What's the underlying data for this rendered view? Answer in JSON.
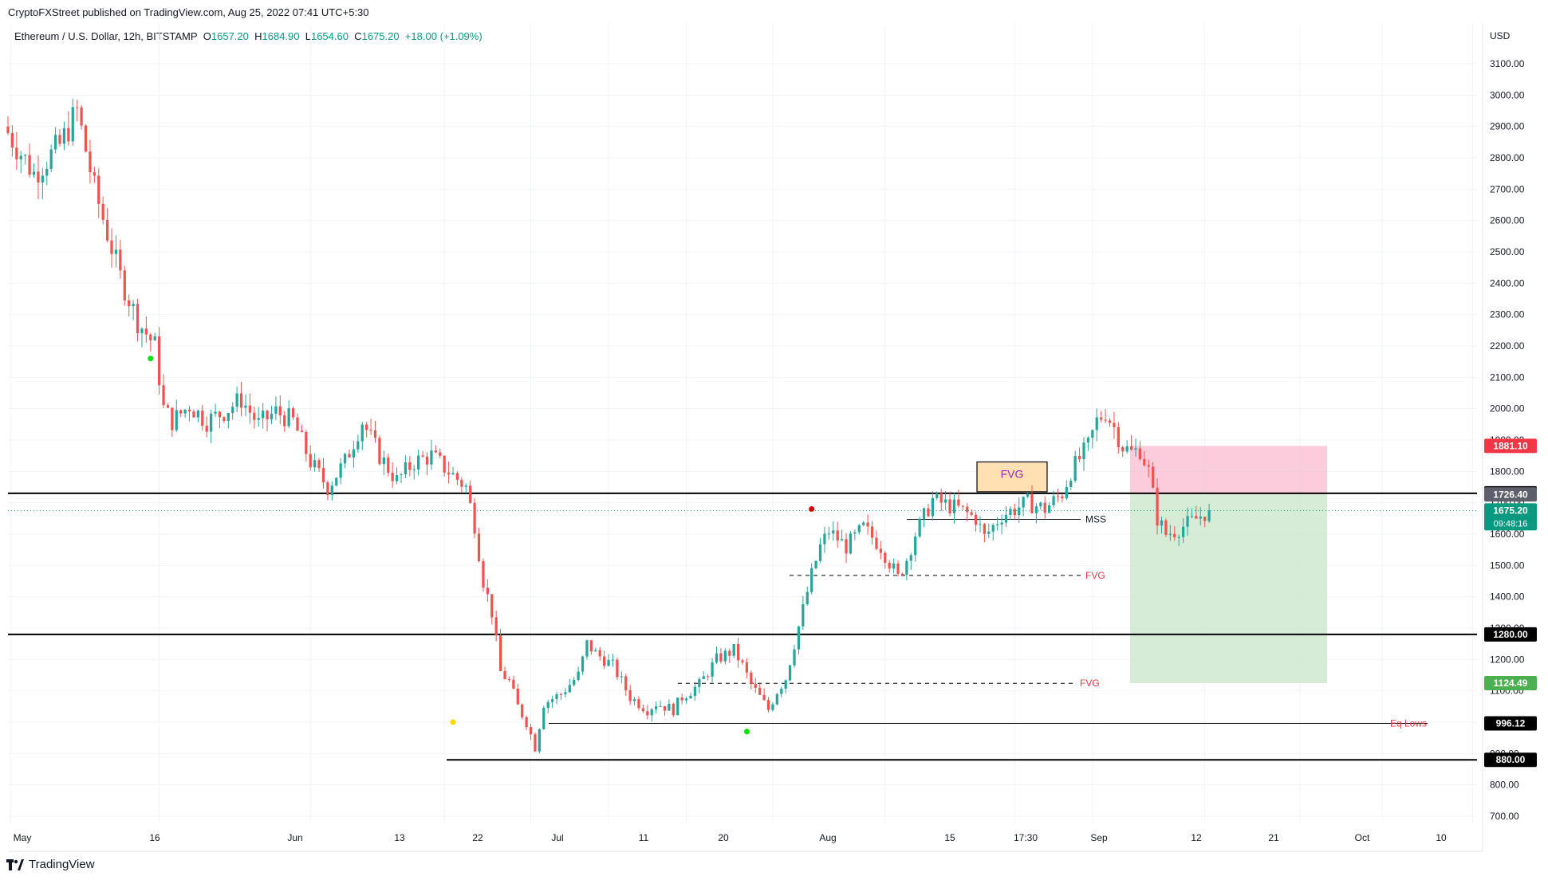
{
  "header": {
    "publisher_line": "CryptoFXStreet published on TradingView.com, Aug 25, 2022 07:41 UTC+5:30"
  },
  "symbol_bar": {
    "symbol": "Ethereum / U.S. Dollar, 12h, BITSTAMP",
    "o_label": "O",
    "o": "1657.20",
    "h_label": "H",
    "h": "1684.90",
    "l_label": "L",
    "l": "1654.60",
    "c_label": "C",
    "c": "1675.20",
    "change": "+18.00 (+1.09%)"
  },
  "footer": {
    "brand": "TradingView"
  },
  "colors": {
    "up": "#26a69a",
    "down": "#ef5350",
    "price_line": "#089981",
    "short_zone": "#f8bbd0",
    "target_zone": "#c8e6c9",
    "fvg_box": "#ffe0b2",
    "sl_label": "#f23645",
    "tp_label": "#4caf50"
  },
  "chart_data": {
    "type": "candlestick",
    "currency": "USD",
    "ylim": [
      650,
      3200
    ],
    "y_ticks": [
      "700.00",
      "800.00",
      "900.00",
      "1000.00",
      "1100.00",
      "1200.00",
      "1300.00",
      "1400.00",
      "1500.00",
      "1600.00",
      "1700.00",
      "1800.00",
      "1900.00",
      "2000.00",
      "2100.00",
      "2200.00",
      "2300.00",
      "2400.00",
      "2500.00",
      "2600.00",
      "2700.00",
      "2800.00",
      "2900.00",
      "3000.00",
      "3100.00"
    ],
    "x_labels": [
      "May",
      "16",
      "Jun",
      "13",
      "22",
      "Jul",
      "11",
      "20",
      "Aug",
      "15",
      "17:30",
      "Sep",
      "12",
      "21",
      "Oct",
      "10"
    ],
    "close_path": [
      [
        0,
        2880
      ],
      [
        6,
        2750
      ],
      [
        12,
        2840
      ],
      [
        16,
        2950
      ],
      [
        20,
        2700
      ],
      [
        26,
        2420
      ],
      [
        30,
        2280
      ],
      [
        34,
        2200
      ],
      [
        36,
        2000
      ],
      [
        38,
        1960
      ],
      [
        42,
        2010
      ],
      [
        46,
        1960
      ],
      [
        50,
        1990
      ],
      [
        54,
        2030
      ],
      [
        58,
        1950
      ],
      [
        62,
        1990
      ],
      [
        66,
        1960
      ],
      [
        70,
        1830
      ],
      [
        74,
        1750
      ],
      [
        78,
        1830
      ],
      [
        82,
        1960
      ],
      [
        86,
        1850
      ],
      [
        90,
        1770
      ],
      [
        94,
        1830
      ],
      [
        98,
        1850
      ],
      [
        102,
        1800
      ],
      [
        106,
        1750
      ],
      [
        108,
        1630
      ],
      [
        110,
        1450
      ],
      [
        112,
        1350
      ],
      [
        114,
        1160
      ],
      [
        116,
        1130
      ],
      [
        118,
        1050
      ],
      [
        120,
        1000
      ],
      [
        122,
        920
      ],
      [
        124,
        1060
      ],
      [
        128,
        1090
      ],
      [
        132,
        1150
      ],
      [
        134,
        1250
      ],
      [
        136,
        1220
      ],
      [
        140,
        1180
      ],
      [
        144,
        1080
      ],
      [
        148,
        1040
      ],
      [
        150,
        1060
      ],
      [
        154,
        1040
      ],
      [
        156,
        1080
      ],
      [
        160,
        1120
      ],
      [
        164,
        1200
      ],
      [
        168,
        1230
      ],
      [
        170,
        1180
      ],
      [
        172,
        1120
      ],
      [
        176,
        1040
      ],
      [
        178,
        1100
      ],
      [
        180,
        1140
      ],
      [
        182,
        1250
      ],
      [
        184,
        1360
      ],
      [
        186,
        1470
      ],
      [
        188,
        1560
      ],
      [
        190,
        1610
      ],
      [
        194,
        1560
      ],
      [
        198,
        1620
      ],
      [
        202,
        1560
      ],
      [
        206,
        1460
      ],
      [
        208,
        1520
      ],
      [
        210,
        1600
      ],
      [
        214,
        1710
      ],
      [
        220,
        1680
      ],
      [
        224,
        1650
      ],
      [
        226,
        1590
      ],
      [
        230,
        1660
      ],
      [
        236,
        1700
      ],
      [
        240,
        1680
      ],
      [
        244,
        1730
      ],
      [
        246,
        1800
      ],
      [
        248,
        1840
      ],
      [
        250,
        1880
      ],
      [
        252,
        1960
      ],
      [
        254,
        1990
      ],
      [
        256,
        1940
      ],
      [
        258,
        1880
      ],
      [
        260,
        1860
      ],
      [
        262,
        1870
      ],
      [
        264,
        1800
      ],
      [
        266,
        1650
      ],
      [
        268,
        1600
      ],
      [
        270,
        1610
      ],
      [
        274,
        1640
      ],
      [
        278,
        1675.2
      ]
    ],
    "markers": [
      {
        "i": 33,
        "price": 2160,
        "color": "#00e600"
      },
      {
        "i": 103,
        "price": 1000,
        "color": "#ffd600"
      },
      {
        "i": 171,
        "price": 970,
        "color": "#00e600"
      },
      {
        "i": 186,
        "price": 1680,
        "color": "#d50000"
      }
    ],
    "levels": [
      {
        "price": 1730,
        "label": "1730.00",
        "style": "solid-thick",
        "color": "#000000"
      },
      {
        "price": 1280,
        "label": "1280.00",
        "style": "solid-thick",
        "color": "#000000"
      },
      {
        "price": 880,
        "label": "880.00",
        "style": "solid-thick",
        "color": "#000000"
      },
      {
        "price": 996.12,
        "label": "996.12",
        "style": "solid-thin",
        "color": "#000000"
      }
    ],
    "annotations": [
      {
        "text": "MSS",
        "price": 1647,
        "color": "#131722"
      },
      {
        "text": "FVG",
        "price": 1468,
        "color": "#f23645"
      },
      {
        "text": "FVG",
        "price": 1124,
        "color": "#f23645"
      },
      {
        "text": "Eq Lows",
        "price": 996.12,
        "color": "#f23645"
      },
      {
        "text": "FVG",
        "price": 1790,
        "color": "#9c27b0"
      }
    ],
    "price_tags": [
      {
        "price": 1881.1,
        "text": "1881.10",
        "bg": "#f23645",
        "fg": "#ffffff"
      },
      {
        "price": 1726.4,
        "text": "1726.40",
        "bg": "#5d606b",
        "fg": "#ffffff"
      },
      {
        "price": 1675.2,
        "text": "1675.20",
        "sub": "09:48:16",
        "bg": "#089981",
        "fg": "#ffffff"
      },
      {
        "price": 1124.49,
        "text": "1124.49",
        "bg": "#4caf50",
        "fg": "#ffffff"
      }
    ],
    "position": {
      "entry": 1726.4,
      "stop": 1881.1,
      "target": 1124.49
    },
    "fvg_zone": {
      "top": 1830,
      "bottom": 1735
    }
  }
}
